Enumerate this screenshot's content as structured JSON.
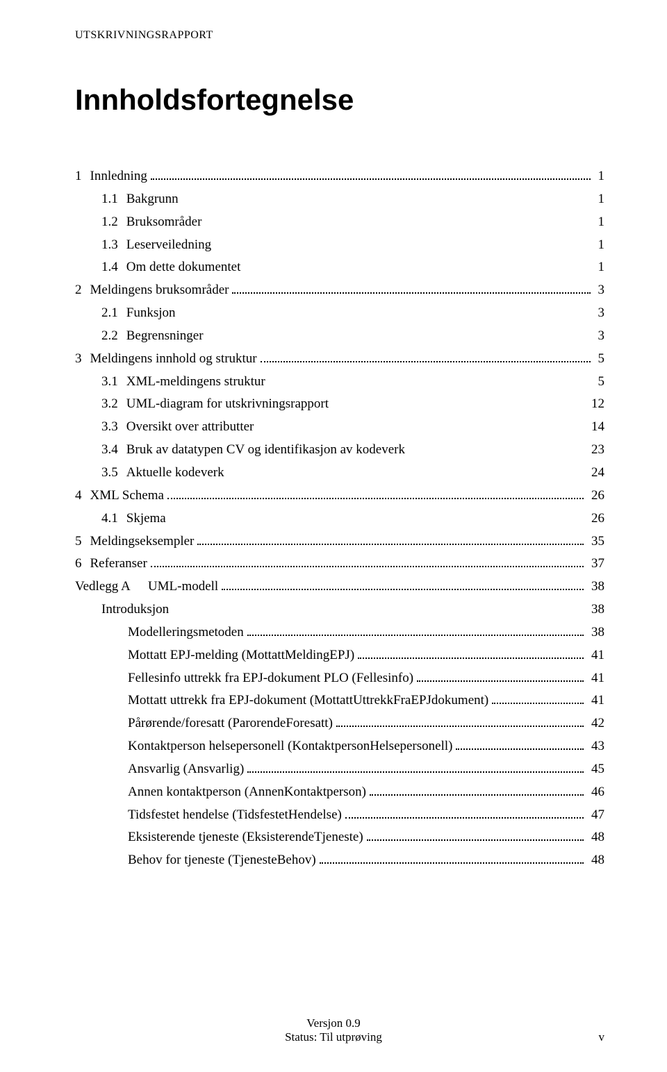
{
  "header": "UTSKRIVNINGSRAPPORT",
  "title": "Innholdsfortegnelse",
  "toc": [
    {
      "level": 1,
      "num": "1",
      "label": "Innledning",
      "page": "1",
      "leader": true
    },
    {
      "level": 2,
      "num": "1.1",
      "label": "Bakgrunn",
      "page": "1",
      "leader": false
    },
    {
      "level": 2,
      "num": "1.2",
      "label": "Bruksområder",
      "page": "1",
      "leader": false
    },
    {
      "level": 2,
      "num": "1.3",
      "label": "Leserveiledning",
      "page": "1",
      "leader": false
    },
    {
      "level": 2,
      "num": "1.4",
      "label": "Om dette dokumentet",
      "page": "1",
      "leader": false
    },
    {
      "level": 1,
      "num": "2",
      "label": "Meldingens bruksområder",
      "page": "3",
      "leader": true
    },
    {
      "level": 2,
      "num": "2.1",
      "label": "Funksjon",
      "page": "3",
      "leader": false
    },
    {
      "level": 2,
      "num": "2.2",
      "label": "Begrensninger",
      "page": "3",
      "leader": false
    },
    {
      "level": 1,
      "num": "3",
      "label": "Meldingens innhold og struktur",
      "page": "5",
      "leader": true
    },
    {
      "level": 2,
      "num": "3.1",
      "label": "XML-meldingens struktur",
      "page": "5",
      "leader": false
    },
    {
      "level": 2,
      "num": "3.2",
      "label": "UML-diagram for utskrivningsrapport",
      "page": "12",
      "leader": false
    },
    {
      "level": 2,
      "num": "3.3",
      "label": "Oversikt over attributter",
      "page": "14",
      "leader": false
    },
    {
      "level": 2,
      "num": "3.4",
      "label": "Bruk av datatypen CV og identifikasjon av kodeverk",
      "page": "23",
      "leader": false
    },
    {
      "level": 2,
      "num": "3.5",
      "label": "Aktuelle kodeverk",
      "page": "24",
      "leader": false
    },
    {
      "level": 1,
      "num": "4",
      "label": "XML Schema",
      "page": "26",
      "leader": true
    },
    {
      "level": 2,
      "num": "4.1",
      "label": "Skjema",
      "page": "26",
      "leader": false
    },
    {
      "level": 1,
      "num": "5",
      "label": "Meldingseksempler",
      "page": "35",
      "leader": true
    },
    {
      "level": 1,
      "num": "6",
      "label": "Referanser",
      "page": "37",
      "leader": true
    },
    {
      "level": 1,
      "num": "Vedlegg A",
      "label": "UML-modell",
      "page": "38",
      "leader": true,
      "numsp": true
    },
    {
      "level": 2,
      "num": "",
      "label": "Introduksjon",
      "page": "38",
      "leader": false
    },
    {
      "level": 3,
      "num": "",
      "label": "Modelleringsmetoden",
      "page": "38",
      "leader": true
    },
    {
      "level": 3,
      "num": "",
      "label": "Mottatt EPJ-melding (MottattMeldingEPJ)",
      "page": "41",
      "leader": true
    },
    {
      "level": 3,
      "num": "",
      "label": "Fellesinfo uttrekk fra EPJ-dokument PLO (Fellesinfo)",
      "page": "41",
      "leader": true
    },
    {
      "level": 3,
      "num": "",
      "label": "Mottatt uttrekk fra EPJ-dokument (MottattUttrekkFraEPJdokument)",
      "page": "41",
      "leader": true
    },
    {
      "level": 3,
      "num": "",
      "label": "Pårørende/foresatt (ParorendeForesatt)",
      "page": "42",
      "leader": true
    },
    {
      "level": 3,
      "num": "",
      "label": "Kontaktperson helsepersonell (KontaktpersonHelsepersonell)",
      "page": "43",
      "leader": true
    },
    {
      "level": 3,
      "num": "",
      "label": "Ansvarlig (Ansvarlig)",
      "page": "45",
      "leader": true
    },
    {
      "level": 3,
      "num": "",
      "label": "Annen kontaktperson (AnnenKontaktperson)",
      "page": "46",
      "leader": true
    },
    {
      "level": 3,
      "num": "",
      "label": "Tidsfestet hendelse (TidsfestetHendelse)",
      "page": "47",
      "leader": true
    },
    {
      "level": 3,
      "num": "",
      "label": "Eksisterende tjeneste (EksisterendeTjeneste)",
      "page": "48",
      "leader": true
    },
    {
      "level": 3,
      "num": "",
      "label": "Behov for tjeneste (TjenesteBehov)",
      "page": "48",
      "leader": true
    }
  ],
  "footer": {
    "line1": "Versjon 0.9",
    "line2": "Status: Til utprøving",
    "pagenum": "v"
  }
}
